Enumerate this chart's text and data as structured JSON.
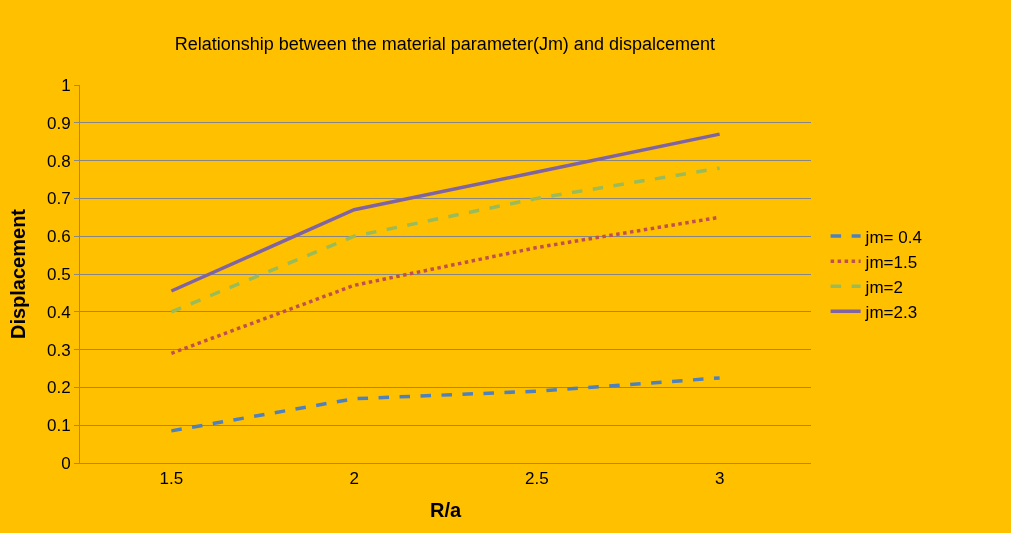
{
  "chart_data": {
    "type": "line",
    "title": "Relationship between the material parameter(Jm) and dispalcement",
    "xlabel": "R/a",
    "ylabel": "Displacement",
    "categories": [
      "1.5",
      "2",
      "2.5",
      "3"
    ],
    "series": [
      {
        "name": "jm= 0.4",
        "color": "#4f81bd",
        "line_style": "dashed",
        "values": [
          0.085,
          0.17,
          0.19,
          0.225
        ]
      },
      {
        "name": "jm=1.5",
        "color": "#c0504d",
        "line_style": "dotted",
        "values": [
          0.29,
          0.47,
          0.57,
          0.65
        ]
      },
      {
        "name": "jm=2",
        "color": "#9bbb59",
        "line_style": "dashed",
        "values": [
          0.4,
          0.6,
          0.7,
          0.78
        ]
      },
      {
        "name": "jm=2.3",
        "color": "#8064a2",
        "line_style": "solid",
        "values": [
          0.455,
          0.67,
          0.77,
          0.87
        ]
      }
    ],
    "ylim": [
      0,
      1
    ],
    "yticks": [
      0,
      0.1,
      0.2,
      0.3,
      0.4,
      0.5,
      0.6,
      0.7,
      0.8,
      0.9,
      1
    ],
    "grid": "y",
    "legend": "right",
    "marker": "none"
  }
}
